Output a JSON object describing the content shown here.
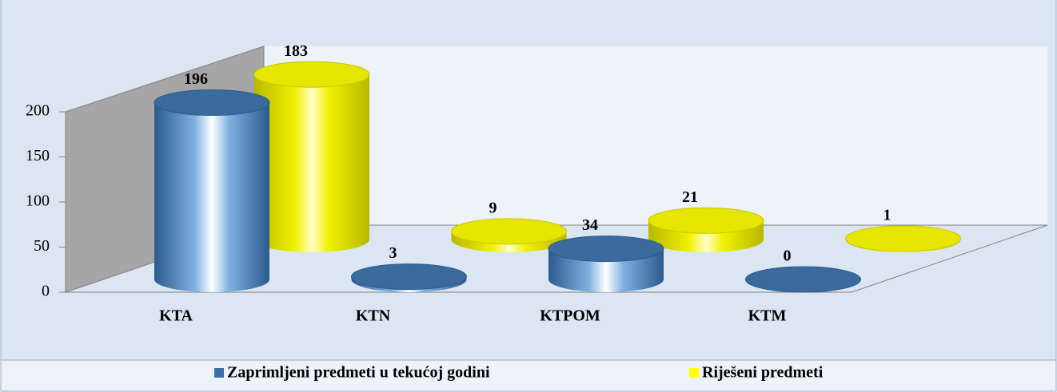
{
  "chart_data": {
    "type": "cylinder",
    "categories": [
      "KTA",
      "KTN",
      "KTPOM",
      "KTM"
    ],
    "series": [
      {
        "name": "Zaprimljeni predmeti u tekućoj godini",
        "color": "#3a6ea5",
        "values": [
          196,
          3,
          34,
          0
        ]
      },
      {
        "name": "Riješeni predmeti",
        "color": "#ffff00",
        "values": [
          183,
          9,
          21,
          1
        ]
      }
    ],
    "ylim": [
      0,
      200
    ],
    "yticks": [
      0,
      50,
      100,
      150,
      200
    ],
    "legend": "bottom"
  }
}
